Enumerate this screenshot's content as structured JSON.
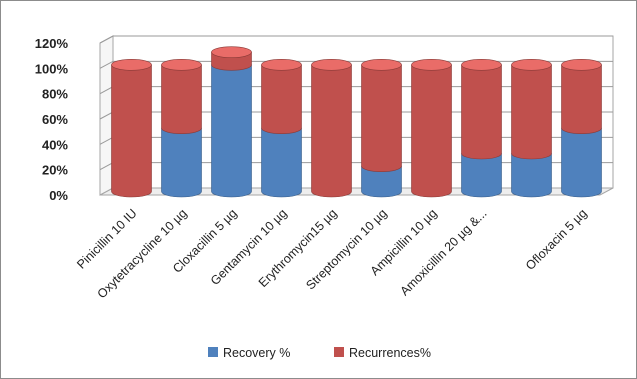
{
  "chart_data": {
    "type": "bar",
    "stacked": true,
    "style": "3d-cylinder",
    "categories": [
      "Pinicillin 10 IU",
      "Oxytetracycline 10 µg",
      "Cloxacillin 5 µg",
      "Gentamycin 10 µg",
      "Erythromycin15 µg",
      "Streptomycin 10 µg",
      "Ampicillin 10 µg",
      "Amoxicillin 20 µg &...",
      "",
      "Ofloxacin 5 µg"
    ],
    "series": [
      {
        "name": "Recovery %",
        "color": "#4f81bd",
        "values": [
          0,
          50,
          100,
          50,
          0,
          20,
          0,
          30,
          30,
          50
        ]
      },
      {
        "name": "Recurrences%",
        "color": "#c0504d",
        "values": [
          100,
          50,
          10,
          50,
          100,
          80,
          100,
          70,
          70,
          50
        ]
      }
    ],
    "yticks": [
      "0%",
      "20%",
      "40%",
      "60%",
      "80%",
      "100%",
      "120%"
    ],
    "ylim": [
      0,
      120
    ],
    "grid": true,
    "legend": "bottom",
    "title": "",
    "xlabel": "",
    "ylabel": ""
  }
}
